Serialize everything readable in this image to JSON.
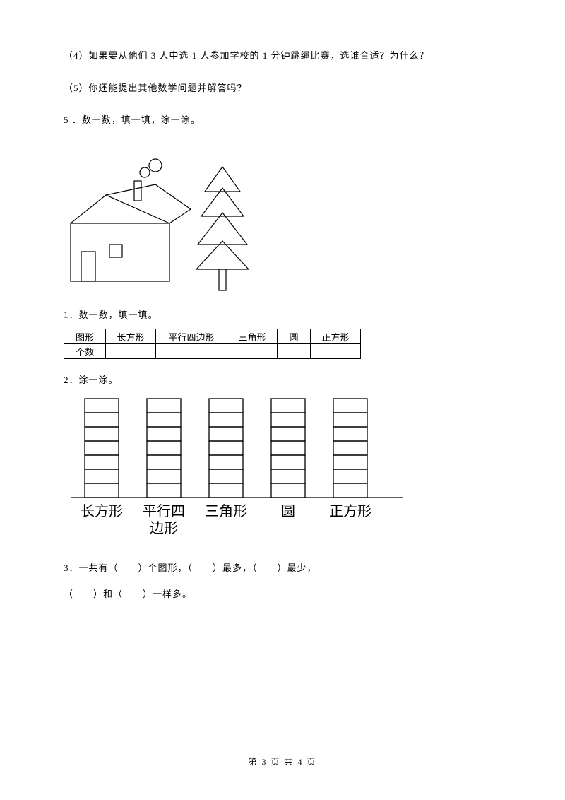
{
  "q4": "（4）如果要从他们 3 人中选 1 人参加学校的 1 分钟跳绳比赛，选谁合适？为什么？",
  "q5": "（5）你还能提出其他数学问题并解答吗？",
  "q6": "5 ．数一数，填一填，涂一涂。",
  "sub1": "1．数一数，填一填。",
  "sub2": "2．涂一涂。",
  "sub3": "3．一共有（　　）个图形，（　　）最多，（　　）最少，",
  "sub3b": "（　　）和（　　）一样多。",
  "table": {
    "h0": "图形",
    "h1": "长方形",
    "h2": "平行四边形",
    "h3": "三角形",
    "h4": "圆",
    "h5": "正方形",
    "r0": "个数"
  },
  "bars": {
    "labels": [
      "长方形",
      "平行四",
      "三角形",
      "圆",
      "正方形"
    ],
    "label1b": "边形",
    "cells": 7,
    "cellW": 48,
    "cellH": 20,
    "gap": 40,
    "baselineY": 148,
    "startX": 30,
    "axisXEnd": 480,
    "fontSize": 20,
    "stroke": "#000000",
    "strokeW": 1.3
  },
  "footer": {
    "text": "第 3 页  共 4 页"
  },
  "house": {
    "stroke": "#000000",
    "strokeW": 1.2
  }
}
